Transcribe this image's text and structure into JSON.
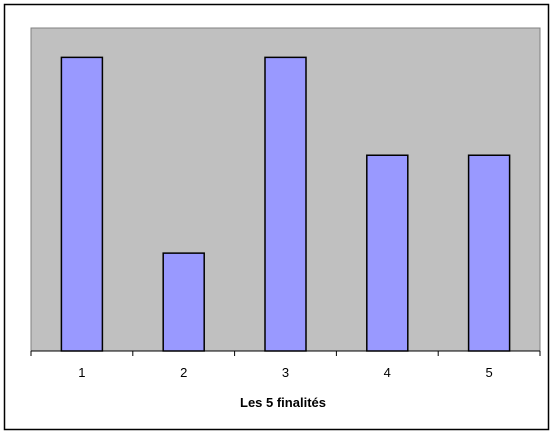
{
  "chart_data": {
    "type": "bar",
    "categories": [
      "1",
      "2",
      "3",
      "4",
      "5"
    ],
    "values": [
      3,
      1,
      3,
      2,
      2
    ],
    "title": "",
    "xlabel": "Les 5 finalités",
    "ylabel": "",
    "ylim": [
      0,
      3.3
    ],
    "grid": false,
    "legend": "none",
    "colors": {
      "plot_background": "#c0c0c0",
      "bar_fill": "#9999ff",
      "bar_stroke": "#000000",
      "frame": "#000000"
    }
  }
}
